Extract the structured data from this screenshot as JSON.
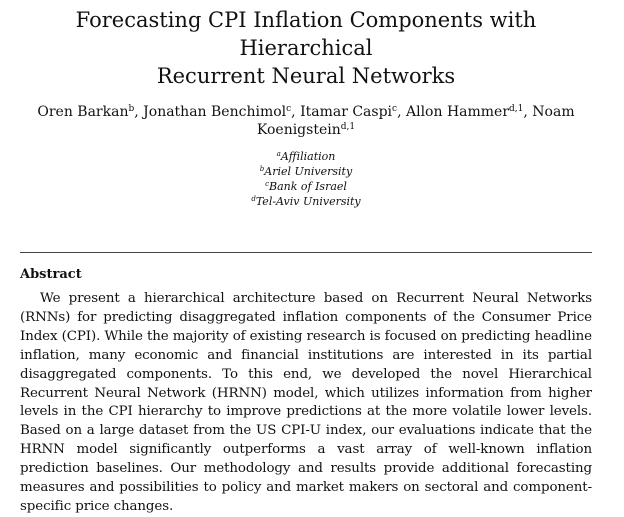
{
  "paper": {
    "title_line1": "Forecasting CPI Inflation Components with Hierarchical",
    "title_line2": "Recurrent Neural Networks",
    "authors": [
      {
        "name": "Oren Barkan",
        "sup": "b",
        "sep": ", "
      },
      {
        "name": "Jonathan Benchimol",
        "sup": "c",
        "sep": ", "
      },
      {
        "name": "Itamar Caspi",
        "sup": "c",
        "sep": ", "
      },
      {
        "name": "Allon Hammer",
        "sup": "d,1",
        "sep": ", "
      },
      {
        "name": "Noam Koenigstein",
        "sup": "d,1",
        "sep": ""
      }
    ],
    "affiliations": [
      {
        "mark": "a",
        "text": "Affiliation"
      },
      {
        "mark": "b",
        "text": "Ariel University"
      },
      {
        "mark": "c",
        "text": "Bank of Israel"
      },
      {
        "mark": "d",
        "text": "Tel-Aviv University"
      }
    ],
    "abstract_heading": "Abstract",
    "abstract_text": "We present a hierarchical architecture based on Recurrent Neural Networks (RNNs) for predicting disaggregated inflation components of the Consumer Price Index (CPI). While the majority of existing research is focused on predicting headline inflation, many economic and financial institutions are interested in its partial disaggregated components. To this end, we developed the novel Hierarchical Recurrent Neural Network (HRNN) model, which utilizes information from higher levels in the CPI hierarchy to improve predictions at the more volatile lower levels. Based on a large dataset from the US CPI-U index, our evaluations indicate that the HRNN model significantly outperforms a vast array of well-known inflation prediction baselines. Our methodology and results provide additional forecasting measures and possibilities to policy and market makers on sectoral and component-specific price changes."
  }
}
